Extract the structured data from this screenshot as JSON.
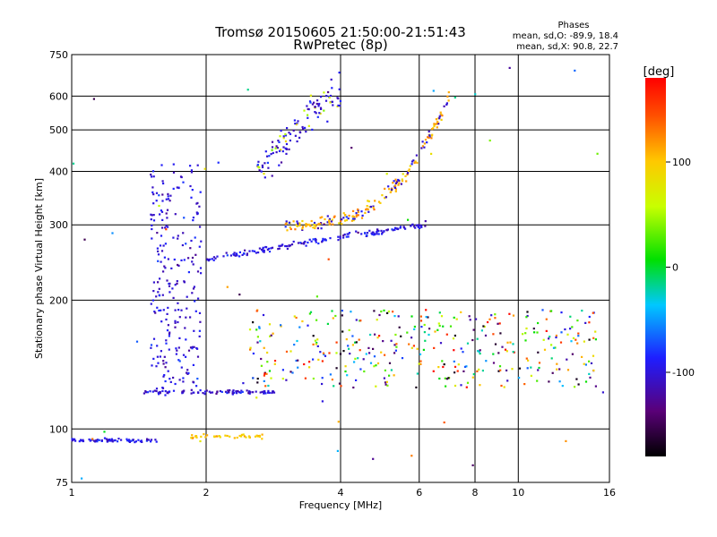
{
  "chart_data": {
    "type": "scatter",
    "title": "Tromsø 20150605 21:50:00-21:51:43",
    "subtitle": "RwPretec (8p)",
    "stats": {
      "heading": "Phases",
      "line1": "mean, sd,O: -89.9, 18.4",
      "line2": "mean, sd,X:  90.8, 22.7"
    },
    "xlabel": "Frequency [MHz]",
    "ylabel": "Stationary phase Virtual Height [km]",
    "x_scale": "log",
    "y_scale": "log",
    "xlim": [
      1,
      16
    ],
    "ylim": [
      75,
      750
    ],
    "x_ticks": [
      1,
      2,
      4,
      6,
      8,
      10,
      16
    ],
    "y_ticks": [
      75,
      100,
      200,
      300,
      400,
      500,
      600,
      750
    ],
    "x_gridlines": [
      2,
      4,
      6,
      8,
      10
    ],
    "y_gridlines": [
      100,
      200,
      300,
      400,
      500,
      600
    ],
    "colorbar": {
      "label": "[deg]",
      "range": [
        -180,
        180
      ],
      "ticks": [
        100,
        0,
        -100
      ],
      "colormap": "rainbow (black-purple-blue-cyan-green-yellow-red)"
    },
    "colors": {
      "grid": "#000000",
      "background": "#ffffff"
    },
    "series": [
      {
        "x_range": [
          1.0,
          1.55
        ],
        "height_km": 94,
        "phase_deg": -95,
        "points": 70
      },
      {
        "x_range": [
          1.85,
          2.7
        ],
        "height_km": 96,
        "phase_deg": 100,
        "points": 40
      },
      {
        "x_range": [
          1.45,
          2.9
        ],
        "height_km": 122,
        "phase_deg": -100,
        "points": 90
      },
      {
        "x_range": [
          2.0,
          6.2
        ],
        "height_km": [
          250,
          300
        ],
        "phase_deg": -100,
        "points": 160
      },
      {
        "x_range": [
          3.0,
          7.0
        ],
        "height_km": [
          300,
          600
        ],
        "phase_deg": 110,
        "points": 200
      },
      {
        "x_range": [
          2.6,
          4.0
        ],
        "height_km": [
          380,
          640
        ],
        "phase_deg": -100,
        "points": 120
      },
      {
        "x_range": [
          1.5,
          1.95
        ],
        "height_km": [
          120,
          420
        ],
        "phase_deg": -100,
        "points": 240
      },
      {
        "x_range": [
          2.5,
          15.0
        ],
        "height_km": [
          125,
          190
        ],
        "phase_deg": 0,
        "points": 380
      },
      {
        "x_range": [
          1.0,
          16.0
        ],
        "height_km": [
          75,
          700
        ],
        "phase_deg": 0,
        "points": 45
      }
    ]
  }
}
